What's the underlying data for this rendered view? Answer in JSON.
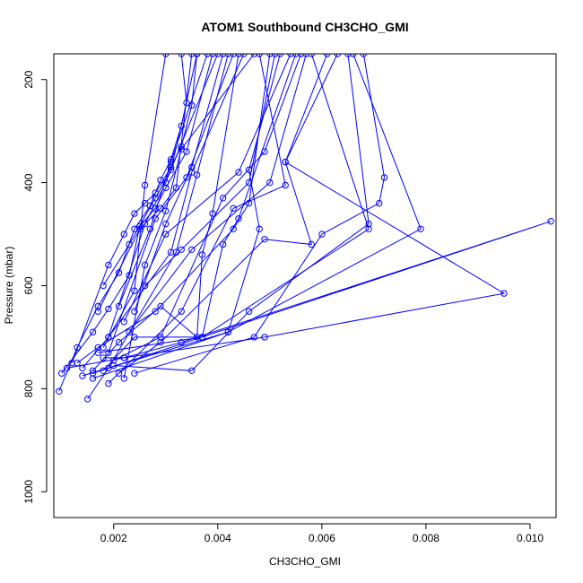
{
  "chart_data": {
    "type": "scatter",
    "title": "ATOM1 Southbound CH3CHO_GMI",
    "xlabel": "CH3CHO_GMI",
    "ylabel": "Pressure (mbar)",
    "xlim": [
      0.00085,
      0.0105
    ],
    "ylim": [
      1050,
      150
    ],
    "y_reversed": true,
    "xticks": [
      0.002,
      0.004,
      0.006,
      0.008,
      0.01
    ],
    "xtick_labels": [
      "0.002",
      "0.004",
      "0.006",
      "0.008",
      "0.010"
    ],
    "yticks": [
      200,
      400,
      600,
      800,
      1000
    ],
    "ytick_labels": [
      "200",
      "400",
      "600",
      "800",
      "1000"
    ],
    "color": "#0000ff",
    "grid": false,
    "legend": "none",
    "series": [
      {
        "points": [
          [
            0.0012,
            750
          ],
          [
            0.0019,
            560
          ],
          [
            0.0022,
            500
          ],
          [
            0.0024,
            460
          ],
          [
            0.0026,
            440
          ],
          [
            0.0028,
            420
          ],
          [
            0.0031,
            370
          ],
          [
            0.0033,
            330
          ],
          [
            0.0035,
            250
          ],
          [
            0.0036,
            150
          ]
        ]
      },
      {
        "points": [
          [
            0.00095,
            805
          ],
          [
            0.0013,
            720
          ],
          [
            0.0017,
            640
          ],
          [
            0.0021,
            575
          ],
          [
            0.0024,
            490
          ],
          [
            0.0027,
            445
          ],
          [
            0.0029,
            395
          ],
          [
            0.0031,
            355
          ],
          [
            0.0033,
            290
          ],
          [
            0.0036,
            150
          ]
        ]
      },
      {
        "points": [
          [
            0.001,
            770
          ],
          [
            0.0016,
            690
          ],
          [
            0.0019,
            645
          ],
          [
            0.0023,
            580
          ],
          [
            0.0025,
            485
          ],
          [
            0.0028,
            450
          ],
          [
            0.003,
            410
          ],
          [
            0.0034,
            340
          ],
          [
            0.0039,
            150
          ]
        ]
      },
      {
        "points": [
          [
            0.0015,
            820
          ],
          [
            0.0019,
            760
          ],
          [
            0.0032,
            535
          ],
          [
            0.0036,
            385
          ],
          [
            0.0042,
            150
          ]
        ]
      },
      {
        "points": [
          [
            0.0014,
            760
          ],
          [
            0.0019,
            700
          ],
          [
            0.0031,
            535
          ],
          [
            0.0035,
            380
          ],
          [
            0.0045,
            150
          ]
        ]
      },
      {
        "points": [
          [
            0.0016,
            765
          ],
          [
            0.0021,
            710
          ],
          [
            0.0029,
            640
          ],
          [
            0.0036,
            700
          ],
          [
            0.0037,
            540
          ],
          [
            0.0039,
            460
          ],
          [
            0.0044,
            150
          ]
        ]
      },
      {
        "points": [
          [
            0.0013,
            750
          ],
          [
            0.0017,
            720
          ],
          [
            0.0028,
            650
          ],
          [
            0.0043,
            490
          ],
          [
            0.0046,
            440
          ],
          [
            0.005,
            150
          ]
        ]
      },
      {
        "points": [
          [
            0.0018,
            765
          ],
          [
            0.0024,
            700
          ],
          [
            0.0037,
            700
          ],
          [
            0.0041,
            520
          ],
          [
            0.0044,
            470
          ],
          [
            0.0055,
            150
          ]
        ]
      },
      {
        "points": [
          [
            0.0019,
            790
          ],
          [
            0.0033,
            650
          ],
          [
            0.0043,
            450
          ],
          [
            0.0053,
            405
          ],
          [
            0.0048,
            150
          ]
        ]
      },
      {
        "points": [
          [
            0.0021,
            770
          ],
          [
            0.0029,
            710
          ],
          [
            0.0049,
            510
          ],
          [
            0.0058,
            520
          ],
          [
            0.0053,
            360
          ],
          [
            0.0061,
            150
          ]
        ]
      },
      {
        "points": [
          [
            0.0016,
            780
          ],
          [
            0.0042,
            690
          ],
          [
            0.0048,
            490
          ],
          [
            0.0046,
            375
          ],
          [
            0.0052,
            150
          ]
        ]
      },
      {
        "points": [
          [
            0.002,
            755
          ],
          [
            0.0035,
            765
          ],
          [
            0.0046,
            650
          ],
          [
            0.0069,
            480
          ],
          [
            0.0065,
            150
          ]
        ]
      },
      {
        "points": [
          [
            0.0024,
            770
          ],
          [
            0.0047,
            700
          ],
          [
            0.006,
            500
          ],
          [
            0.0071,
            440
          ],
          [
            0.0072,
            390
          ],
          [
            0.0068,
            150
          ]
        ]
      },
      {
        "points": [
          [
            0.0011,
            760
          ],
          [
            0.0022,
            740
          ],
          [
            0.0049,
            700
          ],
          [
            0.0095,
            615
          ],
          [
            0.0053,
            360
          ],
          [
            0.0063,
            150
          ]
        ]
      },
      {
        "points": [
          [
            0.0016,
            770
          ],
          [
            0.0104,
            475
          ],
          [
            0.0033,
            710
          ],
          [
            0.0022,
            740
          ],
          [
            0.0018,
            740
          ]
        ]
      },
      {
        "points": [
          [
            0.0014,
            775
          ],
          [
            0.0042,
            690
          ],
          [
            0.0079,
            490
          ],
          [
            0.0066,
            150
          ]
        ]
      },
      {
        "points": [
          [
            0.0017,
            730
          ],
          [
            0.0037,
            700
          ],
          [
            0.0069,
            490
          ],
          [
            0.0058,
            150
          ]
        ]
      },
      {
        "points": [
          [
            0.002,
            745
          ],
          [
            0.0029,
            700
          ],
          [
            0.0041,
            430
          ],
          [
            0.0049,
            340
          ],
          [
            0.0056,
            150
          ]
        ]
      },
      {
        "points": [
          [
            0.0022,
            780
          ],
          [
            0.0026,
            560
          ],
          [
            0.003,
            455
          ],
          [
            0.0033,
            335
          ],
          [
            0.0047,
            150
          ]
        ]
      },
      {
        "points": [
          [
            0.0018,
            720
          ],
          [
            0.0024,
            610
          ],
          [
            0.0026,
            405
          ],
          [
            0.003,
            150
          ]
        ]
      },
      {
        "points": [
          [
            0.0018,
            600
          ],
          [
            0.0023,
            520
          ],
          [
            0.0028,
            430
          ],
          [
            0.0031,
            375
          ],
          [
            0.0034,
            245
          ],
          [
            0.0033,
            150
          ]
        ]
      },
      {
        "points": [
          [
            0.0017,
            650
          ],
          [
            0.0025,
            490
          ],
          [
            0.0029,
            450
          ],
          [
            0.0032,
            410
          ],
          [
            0.0035,
            150
          ]
        ]
      },
      {
        "points": [
          [
            0.0019,
            700
          ],
          [
            0.0026,
            480
          ],
          [
            0.003,
            400
          ],
          [
            0.004,
            150
          ]
        ]
      },
      {
        "points": [
          [
            0.0021,
            640
          ],
          [
            0.0027,
            490
          ],
          [
            0.0031,
            360
          ],
          [
            0.0038,
            150
          ]
        ]
      },
      {
        "points": [
          [
            0.0019,
            730
          ],
          [
            0.0028,
            470
          ],
          [
            0.0034,
            390
          ],
          [
            0.0043,
            150
          ]
        ]
      },
      {
        "points": [
          [
            0.0024,
            650
          ],
          [
            0.003,
            480
          ],
          [
            0.0035,
            370
          ],
          [
            0.0041,
            150
          ]
        ]
      },
      {
        "points": [
          [
            0.0026,
            600
          ],
          [
            0.0033,
            530
          ],
          [
            0.0046,
            400
          ],
          [
            0.0051,
            150
          ]
        ]
      },
      {
        "points": [
          [
            0.0022,
            670
          ],
          [
            0.003,
            500
          ],
          [
            0.0044,
            380
          ],
          [
            0.0054,
            150
          ]
        ]
      },
      {
        "points": [
          [
            0.0023,
            690
          ],
          [
            0.0035,
            530
          ],
          [
            0.005,
            400
          ],
          [
            0.0057,
            150
          ]
        ]
      }
    ]
  }
}
